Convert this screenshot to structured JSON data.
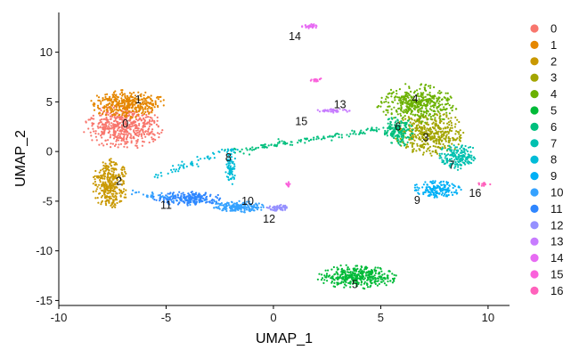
{
  "chart_data": {
    "type": "scatter",
    "xlabel": "UMAP_1",
    "ylabel": "UMAP_2",
    "xlim": [
      -10,
      11
    ],
    "ylim": [
      -15.5,
      14
    ],
    "xticks": [
      -10,
      -5,
      0,
      5,
      10
    ],
    "yticks": [
      -15,
      -10,
      -5,
      0,
      5,
      10
    ],
    "grid": false,
    "legend": "right",
    "series": [
      {
        "name": "0",
        "color": "#F8766D",
        "label_pos": [
          -6.9,
          2.8
        ],
        "blobs": [
          {
            "cx": -7.0,
            "cy": 2.5,
            "rx": 1.8,
            "ry": 2.2,
            "n": 520
          }
        ]
      },
      {
        "name": "1",
        "color": "#E58700",
        "label_pos": [
          -6.3,
          5.2
        ],
        "blobs": [
          {
            "cx": -6.8,
            "cy": 4.8,
            "rx": 1.7,
            "ry": 1.4,
            "n": 380
          }
        ]
      },
      {
        "name": "2",
        "color": "#C99800",
        "label_pos": [
          -7.2,
          -3.0
        ],
        "blobs": [
          {
            "cx": -7.6,
            "cy": -3.3,
            "rx": 0.8,
            "ry": 2.5,
            "n": 320
          }
        ]
      },
      {
        "name": "3",
        "color": "#A3A500",
        "label_pos": [
          7.1,
          1.4
        ],
        "blobs": [
          {
            "cx": 7.3,
            "cy": 1.8,
            "rx": 1.6,
            "ry": 2.2,
            "n": 420
          }
        ]
      },
      {
        "name": "4",
        "color": "#6BB100",
        "label_pos": [
          6.6,
          5.3
        ],
        "blobs": [
          {
            "cx": 6.7,
            "cy": 4.8,
            "rx": 1.8,
            "ry": 2.0,
            "n": 420
          }
        ]
      },
      {
        "name": "5",
        "color": "#00BA38",
        "label_pos": [
          3.8,
          -13.4
        ],
        "blobs": [
          {
            "cx": 3.9,
            "cy": -12.6,
            "rx": 1.8,
            "ry": 1.2,
            "n": 360
          }
        ]
      },
      {
        "name": "6",
        "color": "#00BF7D",
        "label_pos": [
          5.8,
          2.5
        ],
        "blobs": [
          {
            "cx": 5.8,
            "cy": 2.0,
            "rx": 0.7,
            "ry": 1.5,
            "n": 150
          }
        ]
      },
      {
        "name": "7",
        "color": "#00C0AF",
        "label_pos": [
          8.3,
          -1.4
        ],
        "blobs": [
          {
            "cx": 8.6,
            "cy": -0.6,
            "rx": 0.9,
            "ry": 1.4,
            "n": 170
          }
        ]
      },
      {
        "name": "8",
        "color": "#00BCD8",
        "label_pos": [
          -2.1,
          -0.6
        ],
        "blobs": [
          {
            "cx": -2.0,
            "cy": -1.6,
            "rx": 0.25,
            "ry": 1.8,
            "n": 80
          }
        ]
      },
      {
        "name": "9",
        "color": "#00B0F6",
        "label_pos": [
          6.7,
          -4.9
        ],
        "blobs": [
          {
            "cx": 7.6,
            "cy": -3.8,
            "rx": 1.1,
            "ry": 0.8,
            "n": 160
          }
        ]
      },
      {
        "name": "10",
        "color": "#35A2FF",
        "label_pos": [
          -1.2,
          -5.0
        ],
        "blobs": [
          {
            "cx": -1.6,
            "cy": -5.6,
            "rx": 1.2,
            "ry": 0.6,
            "n": 160
          }
        ]
      },
      {
        "name": "11",
        "color": "#2F86FF",
        "label_pos": [
          -5.0,
          -5.4
        ],
        "blobs": [
          {
            "cx": -4.0,
            "cy": -4.7,
            "rx": 1.6,
            "ry": 0.7,
            "n": 200
          }
        ]
      },
      {
        "name": "12",
        "color": "#9590FF",
        "label_pos": [
          -0.2,
          -6.8
        ],
        "blobs": [
          {
            "cx": 0.2,
            "cy": -5.7,
            "rx": 0.5,
            "ry": 0.35,
            "n": 60
          }
        ]
      },
      {
        "name": "13",
        "color": "#C77CFF",
        "label_pos": [
          3.1,
          4.7
        ],
        "blobs": [
          {
            "cx": 2.8,
            "cy": 4.1,
            "rx": 0.8,
            "ry": 0.2,
            "n": 40
          }
        ]
      },
      {
        "name": "14",
        "color": "#E76BF3",
        "label_pos": [
          1.0,
          11.6
        ],
        "blobs": [
          {
            "cx": 1.7,
            "cy": 12.6,
            "rx": 0.35,
            "ry": 0.25,
            "n": 30
          }
        ]
      },
      {
        "name": "15",
        "color": "#FA62DB",
        "label_pos": [
          1.3,
          3.0
        ],
        "blobs": [
          {
            "cx": 2.0,
            "cy": 7.2,
            "rx": 0.3,
            "ry": 0.2,
            "n": 18
          },
          {
            "cx": 0.7,
            "cy": -3.2,
            "rx": 0.1,
            "ry": 0.4,
            "n": 10
          }
        ]
      },
      {
        "name": "16",
        "color": "#FF62BC",
        "label_pos": [
          9.4,
          -4.2
        ],
        "blobs": [
          {
            "cx": 9.8,
            "cy": -3.3,
            "rx": 0.3,
            "ry": 0.2,
            "n": 14
          }
        ]
      }
    ],
    "bridges": [
      {
        "from": [
          -2.0,
          0.0
        ],
        "to": [
          6.0,
          2.6
        ],
        "color": "#00BF7D",
        "n": 140
      },
      {
        "from": [
          -5.5,
          -2.5
        ],
        "to": [
          -1.8,
          0.2
        ],
        "color": "#00BCD8",
        "n": 60
      },
      {
        "from": [
          -6.5,
          -4.2
        ],
        "to": [
          -1.0,
          -5.7
        ],
        "color": "#35A2FF",
        "n": 90
      }
    ]
  }
}
